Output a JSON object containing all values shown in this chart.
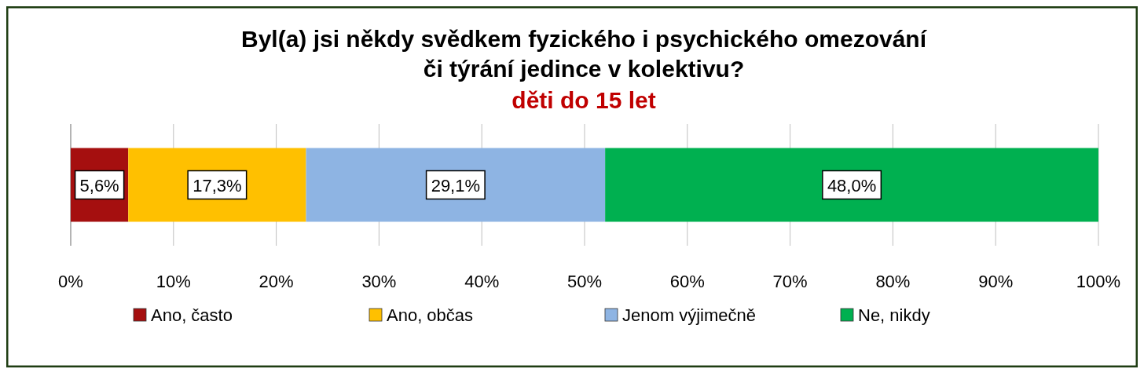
{
  "chart_data": {
    "type": "bar",
    "orientation": "horizontal",
    "stacked": true,
    "title": "Byl(a) jsi někdy svědkem fyzického i psychického omezování\nči týrání jedince v kolektivu?",
    "subtitle": "děti do 15 let",
    "categories": [
      null
    ],
    "series": [
      {
        "name": "Ano, často",
        "color": "#a50f0f",
        "values": [
          5.6
        ],
        "value_labels": [
          "5,6%"
        ]
      },
      {
        "name": "Ano, občas",
        "color": "#ffc000",
        "values": [
          17.3
        ],
        "value_labels": [
          "17,3%"
        ]
      },
      {
        "name": "Jenom výjimečně",
        "color": "#8eb4e3",
        "values": [
          29.1
        ],
        "value_labels": [
          "29,1%"
        ]
      },
      {
        "name": "Ne, nikdy",
        "color": "#00b050",
        "values": [
          48.0
        ],
        "value_labels": [
          "48,0%"
        ]
      }
    ],
    "xlim": [
      0,
      100
    ],
    "xticks": [
      {
        "value": 0,
        "label": "0%"
      },
      {
        "value": 10,
        "label": "10%"
      },
      {
        "value": 20,
        "label": "20%"
      },
      {
        "value": 30,
        "label": "30%"
      },
      {
        "value": 40,
        "label": "40%"
      },
      {
        "value": 50,
        "label": "50%"
      },
      {
        "value": 60,
        "label": "60%"
      },
      {
        "value": 70,
        "label": "70%"
      },
      {
        "value": 80,
        "label": "80%"
      },
      {
        "value": 90,
        "label": "90%"
      },
      {
        "value": 100,
        "label": "100%"
      }
    ],
    "grid": "x",
    "legend": "bottom"
  }
}
